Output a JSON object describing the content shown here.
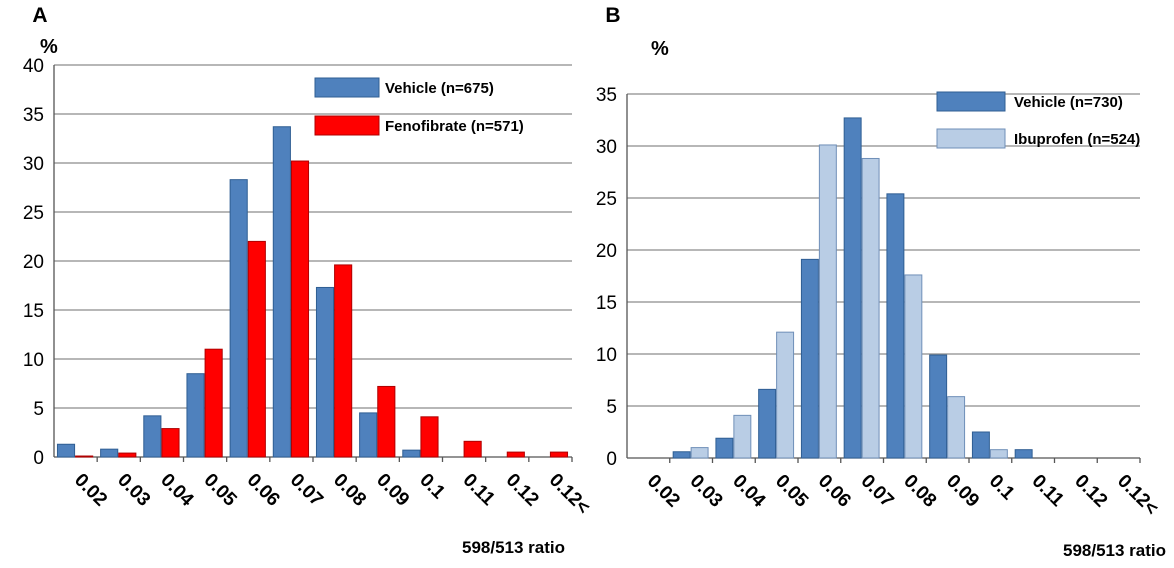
{
  "chart_data": [
    {
      "type": "bar",
      "panel_label": "A",
      "ylabel": "%",
      "xlabel": "598/513 ratio",
      "ylim": [
        0,
        40
      ],
      "ytick_step": 5,
      "yticks": [
        "0",
        "5",
        "10",
        "15",
        "20",
        "25",
        "30",
        "35",
        "40"
      ],
      "grid": true,
      "legend_position": "top-right",
      "categories": [
        "0.02",
        "0.03",
        "0.04",
        "0.05",
        "0.06",
        "0.07",
        "0.08",
        "0.09",
        "0.1",
        "0.11",
        "0.12",
        "0.12<"
      ],
      "series": [
        {
          "name": "Vehicle (n=675)",
          "color": "#4f81bd",
          "values": [
            1.3,
            0.8,
            4.2,
            8.5,
            28.3,
            33.7,
            17.3,
            4.5,
            0.7,
            0,
            0,
            0
          ]
        },
        {
          "name": "Fenofibrate (n=571)",
          "color": "#ff0000",
          "values": [
            0.1,
            0.4,
            2.9,
            11.0,
            22.0,
            30.2,
            19.6,
            7.2,
            4.1,
            1.6,
            0.5,
            0.5
          ]
        }
      ]
    },
    {
      "type": "bar",
      "panel_label": "B",
      "ylabel": "%",
      "xlabel": "598/513 ratio",
      "ylim": [
        0,
        35
      ],
      "ytick_step": 5,
      "yticks": [
        "0",
        "5",
        "10",
        "15",
        "20",
        "25",
        "30",
        "35"
      ],
      "grid": true,
      "legend_position": "top-right",
      "categories": [
        "0.02",
        "0.03",
        "0.04",
        "0.05",
        "0.06",
        "0.07",
        "0.08",
        "0.09",
        "0.1",
        "0.11",
        "0.12",
        "0.12<"
      ],
      "series": [
        {
          "name": "Vehicle (n=730)",
          "color": "#4f81bd",
          "values": [
            0,
            0.6,
            1.9,
            6.6,
            19.1,
            32.7,
            25.4,
            9.9,
            2.5,
            0.8,
            0,
            0
          ]
        },
        {
          "name": "Ibuprofen (n=524)",
          "color": "#b9cde5",
          "values": [
            0,
            1.0,
            4.1,
            12.1,
            30.1,
            28.8,
            17.6,
            5.9,
            0.8,
            0,
            0,
            0
          ]
        }
      ]
    }
  ]
}
